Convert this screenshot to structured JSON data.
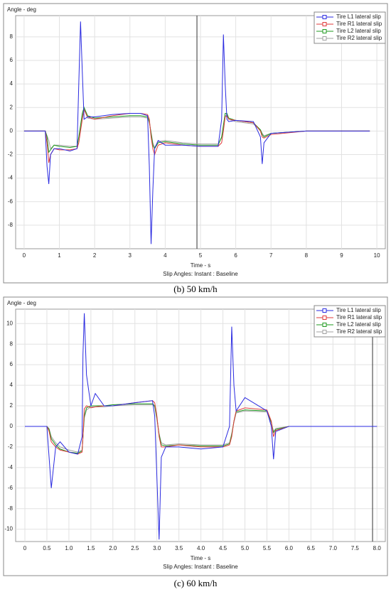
{
  "chart_data": [
    {
      "type": "line",
      "y_label": "Angle - deg",
      "x_label": "Time - s",
      "footer": "Slip Angles: Instant : Baseline",
      "caption": "(b) 50 km/h",
      "xlim": [
        -0.24,
        10.24
      ],
      "ylim": [
        -10,
        9.8
      ],
      "xticks": [
        0,
        1,
        2,
        3,
        4,
        5,
        6,
        7,
        8,
        9,
        10
      ],
      "yticks": [
        -8,
        -6,
        -4,
        -2,
        0,
        2,
        4,
        6,
        8
      ],
      "grid": true,
      "legend": "top-right",
      "cursor": 4.9,
      "x": [
        0,
        0.6,
        0.65,
        0.7,
        0.75,
        0.85,
        1.0,
        1.3,
        1.5,
        1.55,
        1.6,
        1.65,
        1.7,
        1.8,
        2.0,
        2.5,
        3.0,
        3.3,
        3.5,
        3.55,
        3.6,
        3.65,
        3.7,
        3.8,
        4.0,
        4.5,
        5.0,
        5.5,
        5.6,
        5.65,
        5.7,
        5.75,
        5.8,
        6.0,
        6.5,
        6.7,
        6.75,
        6.8,
        7.0,
        8.0,
        9.0,
        9.8
      ],
      "series": [
        {
          "name": "Tire L1 lateral slip",
          "color": "#2a2ae0",
          "values": [
            0,
            0,
            -3,
            -4.5,
            -2,
            -1.5,
            -1.5,
            -1.7,
            -1.5,
            4,
            9.3,
            5,
            1,
            1.2,
            1.2,
            1.4,
            1.5,
            1.5,
            1.3,
            -3,
            -9.6,
            -5,
            -1.5,
            -0.8,
            -1.2,
            -1.2,
            -1.3,
            -1.3,
            1,
            8.2,
            4,
            1,
            0.8,
            0.9,
            0.8,
            -0.5,
            -2.8,
            -1,
            -0.2,
            0,
            0,
            0
          ]
        },
        {
          "name": "Tire R1 lateral slip",
          "color": "#e03a3a",
          "values": [
            0,
            0,
            -1,
            -2.7,
            -2,
            -1.5,
            -1.6,
            -1.6,
            -1.5,
            -1,
            0,
            1,
            1.8,
            1.2,
            1,
            1.3,
            1.5,
            1.5,
            1.4,
            1,
            -0.5,
            -1.5,
            -2,
            -1.2,
            -1,
            -1.2,
            -1.3,
            -1.3,
            -1,
            0,
            1.2,
            1.3,
            1,
            0.9,
            0.7,
            0,
            -0.5,
            -0.6,
            -0.3,
            0,
            0,
            0
          ]
        },
        {
          "name": "Tire L2 lateral slip",
          "color": "#1f9a1f",
          "values": [
            0,
            0,
            -0.5,
            -1.8,
            -1.6,
            -1.2,
            -1.3,
            -1.4,
            -1.3,
            -0.5,
            0.5,
            1.5,
            2,
            1.3,
            1.1,
            1.2,
            1.3,
            1.3,
            1.2,
            0.8,
            -0.2,
            -1.2,
            -1.5,
            -1,
            -0.9,
            -1.1,
            -1.2,
            -1.2,
            -0.5,
            0.5,
            1.5,
            1.5,
            1.1,
            0.9,
            0.7,
            0.1,
            -0.3,
            -0.5,
            -0.2,
            0,
            0,
            0
          ]
        },
        {
          "name": "Tire R2 lateral slip",
          "color": "#a0a0a0",
          "values": [
            0,
            0,
            -0.4,
            -0.8,
            -1.5,
            -1.2,
            -1.2,
            -1.3,
            -1.3,
            -0.6,
            0.3,
            1.3,
            1.9,
            1.1,
            1.0,
            1.1,
            1.2,
            1.2,
            1.1,
            0.7,
            -0.1,
            -1,
            -1.4,
            -0.9,
            -0.8,
            -1.0,
            -1.1,
            -1.1,
            -0.6,
            0.4,
            1.3,
            1.4,
            1.0,
            0.8,
            0.6,
            0.1,
            -0.2,
            -0.4,
            -0.2,
            0,
            0,
            0
          ]
        }
      ]
    },
    {
      "type": "line",
      "y_label": "Angle - deg",
      "x_label": "Time - s",
      "footer": "Slip Angles: Instant : Baseline",
      "caption": "(c) 60 km/h",
      "xlim": [
        -0.21,
        8.19
      ],
      "ylim": [
        -11.2,
        11.4
      ],
      "xticks": [
        0,
        0.5,
        {
          "value": 1,
          "label": "1.0"
        },
        1.5,
        {
          "value": 2,
          "label": "2.0"
        },
        2.5,
        {
          "value": 3,
          "label": "3.0"
        },
        3.5,
        {
          "value": 4,
          "label": "4.0"
        },
        4.5,
        {
          "value": 5,
          "label": "5.0"
        },
        5.5,
        {
          "value": 6,
          "label": "6.0"
        },
        6.5,
        {
          "value": 7,
          "label": "7.0"
        },
        7.5,
        {
          "value": 8,
          "label": "8.0"
        }
      ],
      "yticks": [
        -10,
        -8,
        -6,
        -4,
        -2,
        0,
        2,
        4,
        6,
        8,
        10
      ],
      "grid": true,
      "legend": "top-right",
      "cursor": 7.9,
      "x": [
        0,
        0.5,
        0.55,
        0.6,
        0.7,
        0.8,
        1.0,
        1.2,
        1.3,
        1.32,
        1.35,
        1.4,
        1.5,
        1.6,
        1.8,
        2.0,
        2.5,
        2.9,
        2.95,
        3.0,
        3.05,
        3.1,
        3.2,
        3.5,
        4.0,
        4.5,
        4.65,
        4.7,
        4.75,
        4.8,
        5.0,
        5.5,
        5.6,
        5.65,
        5.7,
        6.0,
        7.0,
        8.0
      ],
      "series": [
        {
          "name": "Tire L1 lateral slip",
          "color": "#2a2ae0",
          "values": [
            0,
            0,
            -3,
            -6,
            -2,
            -1.5,
            -2.5,
            -2.7,
            -1,
            7,
            11,
            5,
            2,
            3.2,
            2,
            2,
            2.3,
            2.5,
            1,
            -5,
            -11,
            -3,
            -2,
            -2,
            -2.2,
            -2,
            0,
            9.7,
            4,
            1.5,
            2.8,
            1.5,
            0,
            -3.2,
            -0.5,
            0,
            0,
            0
          ]
        },
        {
          "name": "Tire R1 lateral slip",
          "color": "#e03a3a",
          "values": [
            0,
            0,
            -0.5,
            -1.5,
            -2,
            -2.3,
            -2.5,
            -2.7,
            -2.5,
            -1,
            1.7,
            2,
            1.8,
            1.9,
            2,
            2,
            2.3,
            2.5,
            2.3,
            1,
            -1,
            -2,
            -2,
            -1.8,
            -2,
            -2,
            -1.8,
            -1,
            0.5,
            1.5,
            1.8,
            1.6,
            0.5,
            -1,
            -0.4,
            0,
            0,
            0
          ]
        },
        {
          "name": "Tire L2 lateral slip",
          "color": "#1f9a1f",
          "values": [
            0,
            0,
            -0.3,
            -1.2,
            -1.8,
            -2.2,
            -2.5,
            -2.6,
            -2.4,
            -1,
            1,
            1.8,
            2,
            2,
            2,
            2.1,
            2.2,
            2.2,
            2,
            0.8,
            -0.8,
            -1.8,
            -1.9,
            -1.8,
            -1.9,
            -1.9,
            -1.7,
            -0.8,
            0.5,
            1.4,
            1.6,
            1.5,
            0.4,
            -0.6,
            -0.3,
            0,
            0,
            0
          ]
        },
        {
          "name": "Tire R2 lateral slip",
          "color": "#a0a0a0",
          "values": [
            0,
            0,
            -0.2,
            -1,
            -1.6,
            -2,
            -2.3,
            -2.5,
            -2.3,
            -1,
            0.8,
            1.6,
            1.9,
            1.9,
            1.9,
            2,
            2.1,
            2.1,
            1.9,
            0.7,
            -0.7,
            -1.6,
            -1.8,
            -1.7,
            -1.8,
            -1.8,
            -1.6,
            -0.7,
            0.4,
            1.3,
            1.5,
            1.4,
            0.3,
            -0.5,
            -0.2,
            0,
            0,
            0
          ]
        }
      ]
    }
  ]
}
